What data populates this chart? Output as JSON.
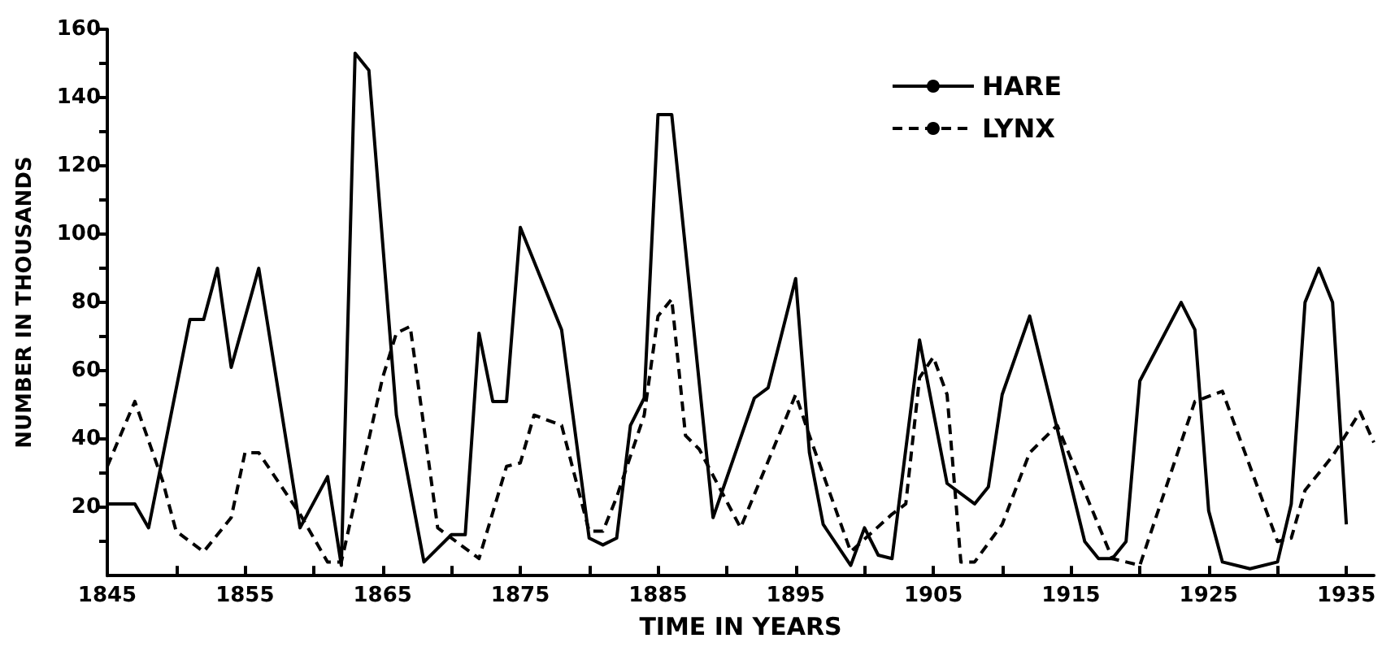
{
  "chart_data": {
    "type": "line",
    "xlabel": "TIME IN YEARS",
    "ylabel": "NUMBER IN THOUSANDS",
    "xlim": [
      1845,
      1937
    ],
    "ylim": [
      0,
      160
    ],
    "xticks": [
      1845,
      {
        "value": 1850,
        "label": null
      },
      1855,
      {
        "value": 1860,
        "label": null
      },
      1865,
      {
        "value": 1870,
        "label": null
      },
      1875,
      {
        "value": 1880,
        "label": null
      },
      1885,
      {
        "value": 1890,
        "label": null
      },
      1895,
      {
        "value": 1900,
        "label": null
      },
      1905,
      {
        "value": 1910,
        "label": null
      },
      1915,
      {
        "value": 1920,
        "label": null
      },
      1925,
      {
        "value": 1930,
        "label": null
      },
      1935
    ],
    "yticks": [
      {
        "value": 10,
        "label": null
      },
      20,
      {
        "value": 30,
        "label": null
      },
      40,
      {
        "value": 50,
        "label": null
      },
      60,
      {
        "value": 70,
        "label": null
      },
      80,
      {
        "value": 90,
        "label": null
      },
      100,
      {
        "value": 110,
        "label": null
      },
      120,
      {
        "value": 130,
        "label": null
      },
      140,
      {
        "value": 150,
        "label": null
      },
      160
    ],
    "grid": false,
    "legend": "top right",
    "marker": "none",
    "series": [
      {
        "name": "HARE",
        "color": "#000000",
        "line_style": "solid",
        "x": [
          1845,
          1846,
          1847,
          1848,
          1851,
          1852,
          1853,
          1854,
          1856,
          1859,
          1861,
          1862,
          1863,
          1864,
          1866,
          1868,
          1870,
          1871,
          1872,
          1873,
          1874,
          1875,
          1878,
          1880,
          1881,
          1882,
          1883,
          1884,
          1885,
          1886,
          1889,
          1892,
          1893,
          1895,
          1896,
          1897,
          1899,
          1900,
          1901,
          1902,
          1904,
          1906,
          1908,
          1909,
          1910,
          1912,
          1914,
          1916,
          1917,
          1918,
          1919,
          1920,
          1923,
          1924,
          1925,
          1926,
          1928,
          1930,
          1931,
          1932,
          1933,
          1934,
          1935
        ],
        "values": [
          21,
          21,
          21,
          14,
          75,
          75,
          90,
          61,
          90,
          14,
          29,
          3,
          153,
          148,
          47,
          4,
          12,
          12,
          71,
          51,
          51,
          102,
          72,
          11,
          9,
          11,
          44,
          52,
          135,
          135,
          17,
          52,
          55,
          87,
          36,
          15,
          3,
          14,
          6,
          5,
          69,
          27,
          21,
          26,
          53,
          76,
          43,
          10,
          5,
          5,
          10,
          57,
          80,
          72,
          19,
          4,
          2,
          4,
          21,
          80,
          90,
          80,
          15
        ]
      },
      {
        "name": "LYNX",
        "color": "#000000",
        "line_style": "dashed",
        "x": [
          1845,
          1847,
          1849,
          1850,
          1852,
          1854,
          1855,
          1856,
          1859,
          1861,
          1862,
          1865,
          1866,
          1867,
          1869,
          1871,
          1872,
          1874,
          1875,
          1876,
          1878,
          1880,
          1881,
          1882,
          1884,
          1885,
          1886,
          1887,
          1888,
          1891,
          1895,
          1896,
          1899,
          1902,
          1903,
          1904,
          1905,
          1906,
          1907,
          1908,
          1910,
          1912,
          1914,
          1918,
          1920,
          1924,
          1926,
          1930,
          1931,
          1932,
          1934,
          1936,
          1937
        ],
        "values": [
          32,
          51,
          28,
          13,
          7,
          17,
          36,
          36,
          18,
          4,
          4,
          58,
          71,
          73,
          14,
          8,
          5,
          32,
          33,
          47,
          44,
          13,
          13,
          23,
          47,
          76,
          81,
          41,
          37,
          14,
          53,
          41,
          7,
          18,
          21,
          58,
          64,
          53,
          4,
          4,
          15,
          36,
          44,
          5,
          3,
          51,
          54,
          10,
          11,
          25,
          35,
          48,
          39
        ]
      }
    ]
  }
}
